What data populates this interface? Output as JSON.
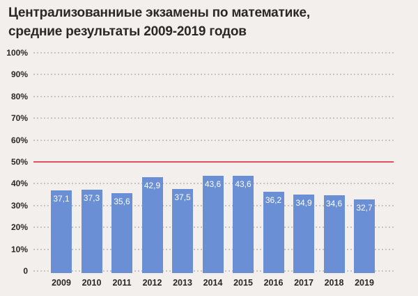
{
  "header": {
    "line1": "Централизованниые экзамены по математике,",
    "line2": "средние результаты 2009-2019 годов"
  },
  "chart_data": {
    "type": "bar",
    "title": "Централизованниые экзамены по математике, средние результаты 2009-2019 годов",
    "categories": [
      "2009",
      "2010",
      "2011",
      "2012",
      "2013",
      "2014",
      "2015",
      "2016",
      "2017",
      "2018",
      "2019"
    ],
    "values": [
      37.1,
      37.3,
      35.6,
      42.9,
      37.5,
      43.6,
      43.6,
      36.2,
      34.9,
      34.6,
      32.7
    ],
    "value_labels": [
      "37,1",
      "37,3",
      "35,6",
      "42,9",
      "37,5",
      "43,6",
      "43,6",
      "36,2",
      "34,9",
      "34,6",
      "32,7"
    ],
    "xlabel": "",
    "ylabel": "",
    "ylim": [
      0,
      100
    ],
    "yticks": [
      {
        "value": 100,
        "label": "100%"
      },
      {
        "value": 90,
        "label": "90%"
      },
      {
        "value": 80,
        "label": "80%"
      },
      {
        "value": 70,
        "label": "70%"
      },
      {
        "value": 60,
        "label": "60%"
      },
      {
        "value": 50,
        "label": "50%"
      },
      {
        "value": 40,
        "label": "40%"
      },
      {
        "value": 30,
        "label": "30%"
      },
      {
        "value": 20,
        "label": "20%"
      },
      {
        "value": 10,
        "label": "10%"
      },
      {
        "value": 0,
        "label": "0"
      }
    ],
    "reference_line": {
      "value": 50,
      "color": "#e14f62"
    },
    "grid": "dotted horizontal gridlines",
    "legend": "none",
    "bar_color": "#6a8fd4",
    "value_label_color": "#ffffff"
  },
  "colors": {
    "background": "#f3efec",
    "bar": "#6a8fd4",
    "reference_line": "#e14f62",
    "gridline": "#c9c3bf",
    "text": "#2b2724",
    "bar_label": "#ffffff"
  }
}
